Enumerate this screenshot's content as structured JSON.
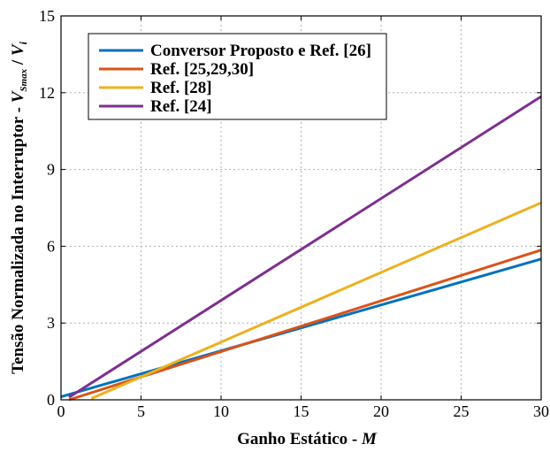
{
  "chart_data": {
    "type": "line",
    "xlabel": "Ganho Estático - ",
    "xlabel_var": "M",
    "ylabel_prefix": "Tensão Normalizada no Interruptor - ",
    "ylabel_v": "V",
    "ylabel_sub": "Smax",
    "ylabel_slash": " / ",
    "ylabel_vi": "V",
    "ylabel_vi_sub": "i",
    "xlim": [
      0,
      30
    ],
    "ylim": [
      0,
      15
    ],
    "xticks": [
      "0",
      "5",
      "10",
      "15",
      "20",
      "25",
      "30"
    ],
    "yticks": [
      "0",
      "3",
      "6",
      "9",
      "12",
      "15"
    ],
    "grid": true,
    "legend_position": "top-left",
    "series": [
      {
        "name": "Conversor Proposto e Ref. [26]",
        "color": "#0072BD",
        "x": [
          0,
          30
        ],
        "y": [
          0.12,
          5.5
        ]
      },
      {
        "name": "Ref. [25,29,30]",
        "color": "#D95319",
        "x": [
          0.5,
          30
        ],
        "y": [
          0,
          5.85
        ]
      },
      {
        "name": "Ref. [28]",
        "color": "#EDB120",
        "x": [
          1.9,
          30
        ],
        "y": [
          0.05,
          7.7
        ]
      },
      {
        "name": "Ref. [24]",
        "color": "#7E2F8E",
        "x": [
          0.5,
          30
        ],
        "y": [
          0.1,
          11.85
        ]
      }
    ]
  }
}
